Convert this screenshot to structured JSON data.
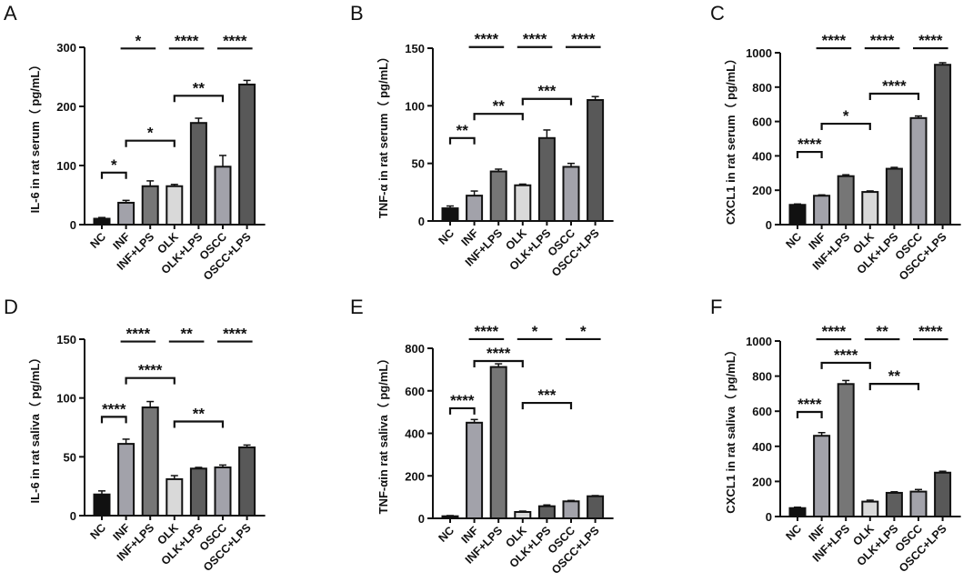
{
  "colors": {
    "NC": "#111111",
    "INF": "#a2a2aa",
    "INF+LPS": "#767676",
    "OLK": "#d9d9d9",
    "OLK+LPS": "#5e5e5e",
    "OSCC": "#a2a2aa",
    "OSCC+LPS": "#585858"
  },
  "chart_data": [
    {
      "panel": "A",
      "type": "bar",
      "ylabel": "IL-6 in rat serum（ pg/mL）",
      "ylim": [
        0,
        300
      ],
      "yticks": [
        0,
        100,
        200,
        300
      ],
      "categories": [
        "NC",
        "INF",
        "INF+LPS",
        "OLK",
        "OLK+LPS",
        "OSCC",
        "OSCC+LPS"
      ],
      "values": [
        10,
        37,
        65,
        65,
        172,
        98,
        237
      ],
      "errors": [
        2,
        4,
        9,
        3,
        8,
        19,
        7
      ],
      "comparisons": [
        {
          "from": "NC",
          "to": "INF",
          "label": "*",
          "y": 88,
          "style": "bracket"
        },
        {
          "from": "INF",
          "to": "OLK",
          "label": "*",
          "y": 142,
          "style": "bracket"
        },
        {
          "from": "OLK",
          "to": "OSCC",
          "label": "**",
          "y": 218,
          "style": "bracket"
        },
        {
          "from": "INF",
          "to": "INF+LPS",
          "label": "*",
          "y": 298,
          "style": "line"
        },
        {
          "from": "OLK",
          "to": "OLK+LPS",
          "label": "****",
          "y": 298,
          "style": "line"
        },
        {
          "from": "OSCC",
          "to": "OSCC+LPS",
          "label": "****",
          "y": 298,
          "style": "line"
        }
      ]
    },
    {
      "panel": "B",
      "type": "bar",
      "ylabel": "TNF-α in rat serum（ pg/mL）",
      "ylim": [
        0,
        150
      ],
      "yticks": [
        0,
        50,
        100,
        150
      ],
      "categories": [
        "NC",
        "INF",
        "INF+LPS",
        "OLK",
        "OLK+LPS",
        "OSCC",
        "OSCC+LPS"
      ],
      "values": [
        11,
        22,
        43,
        31,
        72,
        47,
        105
      ],
      "errors": [
        2,
        4,
        2,
        1,
        7,
        3,
        3
      ],
      "comparisons": [
        {
          "from": "NC",
          "to": "INF",
          "label": "**",
          "y": 72,
          "style": "bracket"
        },
        {
          "from": "INF",
          "to": "OLK",
          "label": "**",
          "y": 93,
          "style": "bracket"
        },
        {
          "from": "OLK",
          "to": "OSCC",
          "label": "***",
          "y": 106,
          "style": "bracket"
        },
        {
          "from": "INF",
          "to": "INF+LPS",
          "label": "****",
          "y": 151,
          "style": "line"
        },
        {
          "from": "OLK",
          "to": "OLK+LPS",
          "label": "****",
          "y": 151,
          "style": "line"
        },
        {
          "from": "OSCC",
          "to": "OSCC+LPS",
          "label": "****",
          "y": 151,
          "style": "line"
        }
      ]
    },
    {
      "panel": "C",
      "type": "bar",
      "ylabel": "CXCL1 in rat serum（ pg/mL）",
      "ylim": [
        0,
        1000
      ],
      "yticks": [
        0,
        200,
        400,
        600,
        800,
        1000
      ],
      "categories": [
        "NC",
        "INF",
        "INF+LPS",
        "OLK",
        "OLK+LPS",
        "OSCC",
        "OSCC+LPS"
      ],
      "values": [
        115,
        168,
        282,
        190,
        325,
        620,
        930
      ],
      "errors": [
        5,
        5,
        8,
        6,
        8,
        12,
        12
      ],
      "comparisons": [
        {
          "from": "NC",
          "to": "INF",
          "label": "****",
          "y": 423,
          "style": "bracket"
        },
        {
          "from": "INF",
          "to": "OLK",
          "label": "*",
          "y": 587,
          "style": "bracket"
        },
        {
          "from": "OLK",
          "to": "OSCC",
          "label": "****",
          "y": 762,
          "style": "bracket"
        },
        {
          "from": "INF",
          "to": "INF+LPS",
          "label": "****",
          "y": 1026,
          "style": "line"
        },
        {
          "from": "OLK",
          "to": "OLK+LPS",
          "label": "****",
          "y": 1026,
          "style": "line"
        },
        {
          "from": "OSCC",
          "to": "OSCC+LPS",
          "label": "****",
          "y": 1026,
          "style": "line"
        }
      ]
    },
    {
      "panel": "D",
      "type": "bar",
      "ylabel": "IL-6 in rat saliva（ pg/mL）",
      "ylim": [
        0,
        150
      ],
      "yticks": [
        0,
        50,
        100,
        150
      ],
      "categories": [
        "NC",
        "INF",
        "INF+LPS",
        "OLK",
        "OLK+LPS",
        "OSCC",
        "OSCC+LPS"
      ],
      "values": [
        18,
        61,
        92,
        31,
        40,
        41,
        58
      ],
      "errors": [
        3,
        4,
        5,
        3,
        1,
        2,
        2
      ],
      "comparisons": [
        {
          "from": "NC",
          "to": "INF",
          "label": "****",
          "y": 84,
          "style": "bracket"
        },
        {
          "from": "INF",
          "to": "OLK",
          "label": "****",
          "y": 117,
          "style": "bracket"
        },
        {
          "from": "OLK",
          "to": "OSCC",
          "label": "**",
          "y": 80,
          "style": "bracket"
        },
        {
          "from": "INF",
          "to": "INF+LPS",
          "label": "****",
          "y": 148,
          "style": "line"
        },
        {
          "from": "OLK",
          "to": "OLK+LPS",
          "label": "**",
          "y": 148,
          "style": "line"
        },
        {
          "from": "OSCC",
          "to": "OSCC+LPS",
          "label": "****",
          "y": 148,
          "style": "line"
        }
      ]
    },
    {
      "panel": "E",
      "type": "bar",
      "ylabel": "TNF-αin rat saliva（ pg/mL）",
      "ylim": [
        0,
        800
      ],
      "yticks": [
        0,
        200,
        400,
        600,
        800
      ],
      "categories": [
        "NC",
        "INF",
        "INF+LPS",
        "OLK",
        "OLK+LPS",
        "OSCC",
        "OSCC+LPS"
      ],
      "values": [
        10,
        450,
        712,
        30,
        57,
        80,
        104
      ],
      "errors": [
        3,
        15,
        15,
        4,
        6,
        4,
        3
      ],
      "comparisons": [
        {
          "from": "NC",
          "to": "INF",
          "label": "****",
          "y": 518,
          "style": "bracket"
        },
        {
          "from": "INF",
          "to": "OLK",
          "label": "****",
          "y": 740,
          "style": "bracket"
        },
        {
          "from": "OLK",
          "to": "OSCC",
          "label": "***",
          "y": 543,
          "style": "bracket"
        },
        {
          "from": "INF",
          "to": "INF+LPS",
          "label": "****",
          "y": 843,
          "style": "line"
        },
        {
          "from": "OLK",
          "to": "OLK+LPS",
          "label": "*",
          "y": 843,
          "style": "line"
        },
        {
          "from": "OSCC",
          "to": "OSCC+LPS",
          "label": "*",
          "y": 843,
          "style": "line"
        }
      ]
    },
    {
      "panel": "F",
      "type": "bar",
      "ylabel": "CXCL1 in rat saliva（ pg/mL）",
      "ylim": [
        0,
        1000
      ],
      "yticks": [
        0,
        200,
        400,
        600,
        800,
        1000
      ],
      "categories": [
        "NC",
        "INF",
        "INF+LPS",
        "OLK",
        "OLK+LPS",
        "OSCC",
        "OSCC+LPS"
      ],
      "values": [
        48,
        460,
        755,
        85,
        135,
        142,
        250
      ],
      "errors": [
        5,
        18,
        20,
        8,
        6,
        12,
        8
      ],
      "comparisons": [
        {
          "from": "NC",
          "to": "INF",
          "label": "****",
          "y": 596,
          "style": "bracket"
        },
        {
          "from": "INF",
          "to": "OLK",
          "label": "****",
          "y": 876,
          "style": "bracket"
        },
        {
          "from": "OLK",
          "to": "OSCC",
          "label": "**",
          "y": 756,
          "style": "bracket"
        },
        {
          "from": "INF",
          "to": "INF+LPS",
          "label": "****",
          "y": 1010,
          "style": "line"
        },
        {
          "from": "OLK",
          "to": "OLK+LPS",
          "label": "**",
          "y": 1010,
          "style": "line"
        },
        {
          "from": "OSCC",
          "to": "OSCC+LPS",
          "label": "****",
          "y": 1010,
          "style": "line"
        }
      ]
    }
  ]
}
